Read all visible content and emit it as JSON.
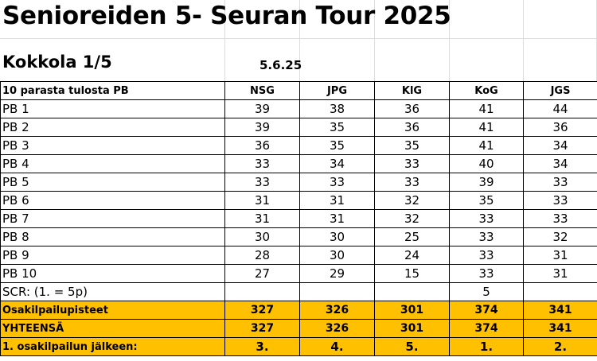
{
  "title": "Senioreiden 5- Seuran Tour 2025",
  "round": {
    "name": "Kokkola 1/5",
    "date": "5.6.25"
  },
  "table": {
    "row_header": "10 parasta tulosta PB",
    "clubs": [
      "NSG",
      "JPG",
      "KlG",
      "KoG",
      "JGS"
    ],
    "rows": [
      {
        "label": "PB 1",
        "values": [
          "39",
          "38",
          "36",
          "41",
          "44"
        ]
      },
      {
        "label": "PB 2",
        "values": [
          "39",
          "35",
          "36",
          "41",
          "36"
        ]
      },
      {
        "label": "PB 3",
        "values": [
          "36",
          "35",
          "35",
          "41",
          "34"
        ]
      },
      {
        "label": "PB 4",
        "values": [
          "33",
          "34",
          "33",
          "40",
          "34"
        ]
      },
      {
        "label": "PB 5",
        "values": [
          "33",
          "33",
          "33",
          "39",
          "33"
        ]
      },
      {
        "label": "PB 6",
        "values": [
          "31",
          "31",
          "32",
          "35",
          "33"
        ]
      },
      {
        "label": "PB 7",
        "values": [
          "31",
          "31",
          "32",
          "33",
          "33"
        ]
      },
      {
        "label": "PB 8",
        "values": [
          "30",
          "30",
          "25",
          "33",
          "32"
        ]
      },
      {
        "label": "PB 9",
        "values": [
          "28",
          "30",
          "24",
          "33",
          "31"
        ]
      },
      {
        "label": "PB 10",
        "values": [
          "27",
          "29",
          "15",
          "33",
          "31"
        ]
      }
    ],
    "scr": {
      "label": "SCR: (1. = 5p)",
      "values": [
        "",
        "",
        "",
        "5",
        ""
      ]
    },
    "points": {
      "label": "Osakilpailupisteet",
      "values": [
        "327",
        "326",
        "301",
        "374",
        "341"
      ]
    },
    "total": {
      "label": "YHTEENSÄ",
      "values": [
        "327",
        "326",
        "301",
        "374",
        "341"
      ]
    },
    "standing": {
      "label": "1. osakilpailun jälkeen:",
      "values": [
        "3.",
        "4.",
        "5.",
        "1.",
        "2."
      ]
    }
  },
  "colors": {
    "highlight": "#ffc000",
    "gridline": "#dcdcdc",
    "border": "#000000"
  }
}
